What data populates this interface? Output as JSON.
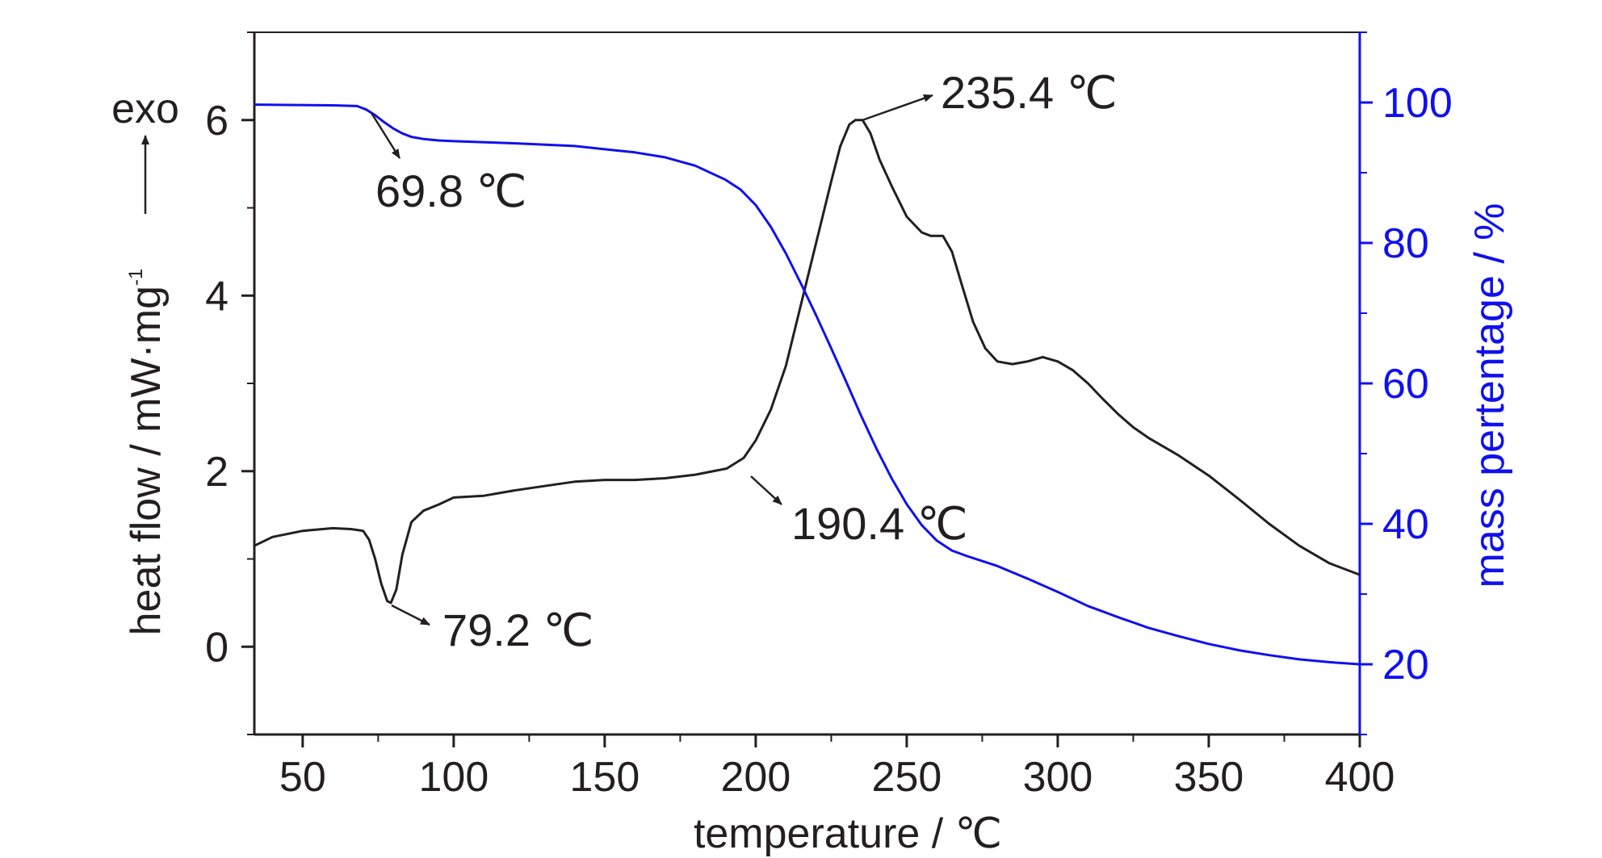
{
  "chart_data": {
    "type": "line",
    "xlabel": "temperature / ℃",
    "ylabel_left": "heat flow / mW·mg",
    "ylabel_left_sup": "-1",
    "ylabel_right": "mass pertentage / %",
    "exo_label": "exo",
    "xlim": [
      34,
      400
    ],
    "ylim_left": [
      -1,
      7
    ],
    "ylim_right": [
      10,
      110
    ],
    "xticks": [
      50,
      100,
      150,
      200,
      250,
      300,
      350,
      400
    ],
    "yticks_left": [
      0,
      2,
      4,
      6
    ],
    "yticks_right": [
      20,
      40,
      60,
      80,
      100
    ],
    "colors": {
      "heat_flow": "#231f20",
      "mass": "#1010ee"
    },
    "series": [
      {
        "axis": "left",
        "x": [
          34,
          40,
          50,
          60,
          66,
          70,
          72,
          74,
          76,
          78,
          79.2,
          81,
          83,
          86,
          90,
          95,
          100,
          110,
          120,
          130,
          140,
          150,
          160,
          170,
          180,
          190.4,
          196,
          200,
          205,
          210,
          215,
          220,
          225,
          228,
          231,
          233,
          235.4,
          238,
          241,
          245,
          250,
          255,
          258,
          262,
          265,
          268,
          272,
          276,
          280,
          285,
          290,
          295,
          300,
          305,
          310,
          315,
          320,
          325,
          330,
          340,
          350,
          360,
          370,
          380,
          390,
          400
        ],
        "values": [
          1.15,
          1.25,
          1.32,
          1.35,
          1.34,
          1.32,
          1.22,
          1.0,
          0.72,
          0.52,
          0.5,
          0.65,
          1.05,
          1.42,
          1.55,
          1.62,
          1.7,
          1.72,
          1.78,
          1.83,
          1.88,
          1.9,
          1.9,
          1.92,
          1.96,
          2.03,
          2.15,
          2.35,
          2.7,
          3.2,
          3.9,
          4.6,
          5.3,
          5.7,
          5.95,
          6.0,
          6.0,
          5.85,
          5.55,
          5.25,
          4.9,
          4.72,
          4.68,
          4.68,
          4.5,
          4.15,
          3.7,
          3.4,
          3.25,
          3.22,
          3.25,
          3.3,
          3.25,
          3.15,
          3.0,
          2.82,
          2.65,
          2.5,
          2.38,
          2.18,
          1.95,
          1.68,
          1.4,
          1.15,
          0.95,
          0.82
        ]
      },
      {
        "axis": "right",
        "x": [
          34,
          60,
          68,
          71,
          74,
          77,
          80,
          83,
          86,
          90,
          95,
          100,
          120,
          140,
          160,
          170,
          180,
          190,
          195,
          200,
          205,
          210,
          215,
          220,
          225,
          230,
          235,
          240,
          245,
          250,
          255,
          260,
          265,
          270,
          275,
          280,
          290,
          300,
          310,
          320,
          330,
          340,
          350,
          360,
          370,
          380,
          390,
          400
        ],
        "values": [
          99.7,
          99.6,
          99.5,
          99.0,
          98.2,
          97.2,
          96.3,
          95.6,
          95.1,
          94.8,
          94.6,
          94.5,
          94.2,
          93.8,
          92.9,
          92.2,
          91.0,
          89.0,
          87.6,
          85.4,
          82.3,
          78.5,
          74.2,
          69.7,
          65.0,
          60.2,
          55.3,
          50.7,
          46.5,
          42.8,
          39.8,
          37.6,
          36.2,
          35.4,
          34.7,
          34.0,
          32.2,
          30.3,
          28.3,
          26.7,
          25.2,
          24.0,
          22.9,
          22.0,
          21.3,
          20.7,
          20.3,
          20.0
        ]
      }
    ],
    "annotations": [
      {
        "text": "235.4 ℃",
        "point": [
          235.4,
          6.0
        ]
      },
      {
        "text": "69.8 ℃",
        "point": [
          69.8,
          1.32
        ]
      },
      {
        "text": "190.4 ℃",
        "point": [
          190.4,
          2.03
        ]
      },
      {
        "text": "79.2 ℃",
        "point": [
          79.2,
          0.5
        ]
      }
    ]
  }
}
